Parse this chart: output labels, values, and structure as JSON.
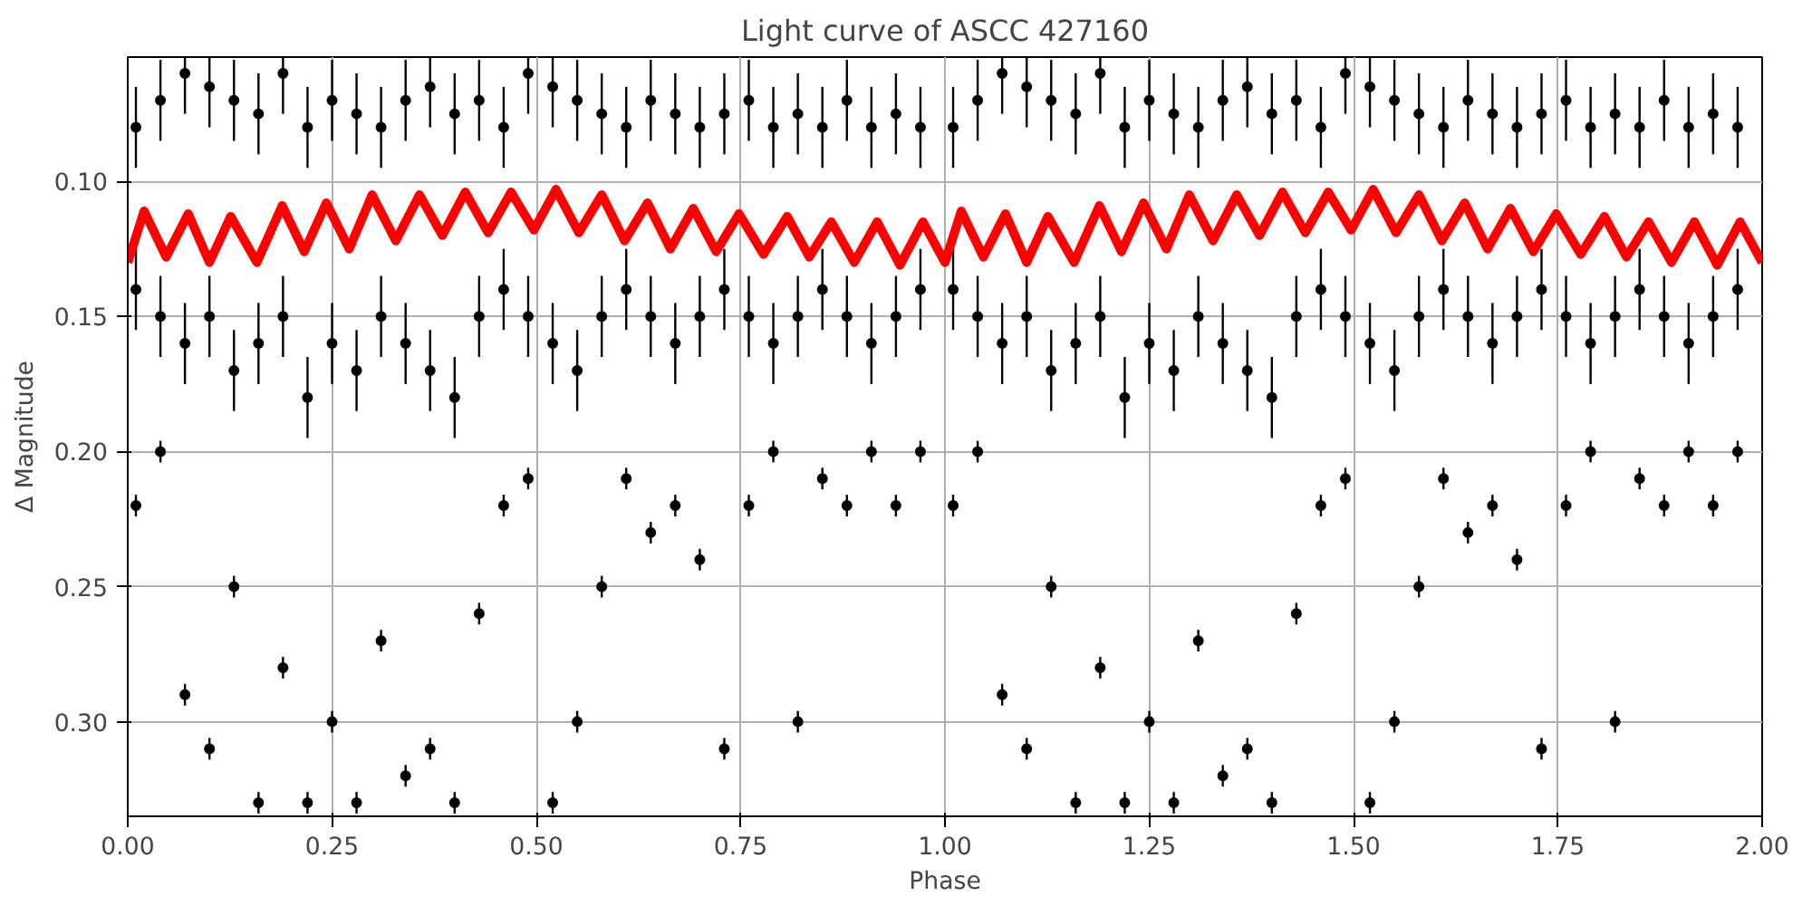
{
  "chart_data": {
    "type": "scatter",
    "title": "Light curve of ASCC 427160",
    "xlabel": "Phase",
    "ylabel": "Δ Magnitude",
    "xlim": [
      0,
      2
    ],
    "ylim": [
      0.335,
      0.054
    ],
    "xticks": [
      {
        "value": 0,
        "label": "0.00"
      },
      {
        "value": 0.25,
        "label": "0.25"
      },
      {
        "value": 0.5,
        "label": "0.50"
      },
      {
        "value": 0.75,
        "label": "0.75"
      },
      {
        "value": 1,
        "label": "1.00"
      },
      {
        "value": 1.25,
        "label": "1.25"
      },
      {
        "value": 1.5,
        "label": "1.50"
      },
      {
        "value": 1.75,
        "label": "1.75"
      },
      {
        "value": 2,
        "label": "2.00"
      }
    ],
    "yticks": [
      {
        "value": 0.1,
        "label": "0.10"
      },
      {
        "value": 0.15,
        "label": "0.15"
      },
      {
        "value": 0.2,
        "label": "0.20"
      },
      {
        "value": 0.25,
        "label": "0.25"
      },
      {
        "value": 0.3,
        "label": "0.30"
      }
    ],
    "grid": true,
    "series": [
      {
        "color": "#000000",
        "marker": "circle",
        "x": [
          0.01,
          0.04,
          0.07,
          0.1,
          0.13,
          0.16,
          0.19,
          0.22,
          0.25,
          0.28,
          0.31,
          0.34,
          0.37,
          0.4,
          0.43,
          0.46,
          0.49,
          0.52,
          0.55,
          0.58,
          0.61,
          0.64,
          0.67,
          0.7,
          0.73,
          0.76,
          0.79,
          0.82,
          0.85,
          0.88,
          0.91,
          0.94,
          0.97,
          0.01,
          0.04,
          0.07,
          0.1,
          0.13,
          0.16,
          0.19,
          0.22,
          0.25,
          0.28,
          0.31,
          0.34,
          0.37,
          0.4,
          0.43,
          0.46,
          0.49,
          0.52,
          0.55,
          0.58,
          0.61,
          0.64,
          0.67,
          0.7,
          0.73,
          0.76,
          0.79,
          0.82,
          0.85,
          0.88,
          0.91,
          0.94,
          0.97,
          0.01,
          0.04,
          0.07,
          0.1,
          0.13,
          0.16,
          0.19,
          0.22,
          0.25,
          0.28,
          0.31,
          0.34,
          0.37,
          0.4,
          0.43,
          0.46,
          0.49,
          0.52,
          0.55,
          0.58,
          0.61,
          0.64,
          0.67,
          0.7,
          0.73,
          0.76,
          0.79,
          0.82,
          0.85,
          0.88,
          0.91,
          0.94,
          0.97,
          1.01,
          1.04,
          1.07,
          1.1,
          1.13,
          1.16,
          1.19,
          1.22,
          1.25,
          1.28,
          1.31,
          1.34,
          1.37,
          1.4,
          1.43,
          1.46,
          1.49,
          1.52,
          1.55,
          1.58,
          1.61,
          1.64,
          1.67,
          1.7,
          1.73,
          1.76,
          1.79,
          1.82,
          1.85,
          1.88,
          1.91,
          1.94,
          1.97,
          1.01,
          1.04,
          1.07,
          1.1,
          1.13,
          1.16,
          1.19,
          1.22,
          1.25,
          1.28,
          1.31,
          1.34,
          1.37,
          1.4,
          1.43,
          1.46,
          1.49,
          1.52,
          1.55,
          1.58,
          1.61,
          1.64,
          1.67,
          1.7,
          1.73,
          1.76,
          1.79,
          1.82,
          1.85,
          1.88,
          1.91,
          1.94,
          1.97,
          1.01,
          1.04,
          1.07,
          1.1,
          1.13,
          1.16,
          1.19,
          1.22,
          1.25,
          1.28,
          1.31,
          1.34,
          1.37,
          1.4,
          1.43,
          1.46,
          1.49,
          1.52,
          1.55,
          1.58,
          1.61,
          1.64,
          1.67,
          1.7,
          1.73,
          1.76,
          1.79,
          1.82,
          1.85,
          1.88,
          1.91,
          1.94,
          1.97
        ],
        "values": [
          0.08,
          0.07,
          0.06,
          0.065,
          0.07,
          0.075,
          0.06,
          0.08,
          0.07,
          0.075,
          0.08,
          0.07,
          0.065,
          0.075,
          0.07,
          0.08,
          0.06,
          0.065,
          0.07,
          0.075,
          0.08,
          0.07,
          0.075,
          0.08,
          0.075,
          0.07,
          0.08,
          0.075,
          0.08,
          0.07,
          0.08,
          0.075,
          0.08,
          0.14,
          0.15,
          0.16,
          0.15,
          0.17,
          0.16,
          0.15,
          0.18,
          0.16,
          0.17,
          0.15,
          0.16,
          0.17,
          0.18,
          0.15,
          0.14,
          0.15,
          0.16,
          0.17,
          0.15,
          0.14,
          0.15,
          0.16,
          0.15,
          0.14,
          0.15,
          0.16,
          0.15,
          0.14,
          0.15,
          0.16,
          0.15,
          0.14,
          0.22,
          0.2,
          0.29,
          0.31,
          0.25,
          0.33,
          0.28,
          0.33,
          0.3,
          0.33,
          0.27,
          0.32,
          0.31,
          0.33,
          0.26,
          0.22,
          0.21,
          0.33,
          0.3,
          0.25,
          0.21,
          0.23,
          0.22,
          0.24,
          0.31,
          0.22,
          0.2,
          0.3,
          0.21,
          0.22,
          0.2,
          0.22,
          0.2,
          0.08,
          0.07,
          0.06,
          0.065,
          0.07,
          0.075,
          0.06,
          0.08,
          0.07,
          0.075,
          0.08,
          0.07,
          0.065,
          0.075,
          0.07,
          0.08,
          0.06,
          0.065,
          0.07,
          0.075,
          0.08,
          0.07,
          0.075,
          0.08,
          0.075,
          0.07,
          0.08,
          0.075,
          0.08,
          0.07,
          0.08,
          0.075,
          0.08,
          0.14,
          0.15,
          0.16,
          0.15,
          0.17,
          0.16,
          0.15,
          0.18,
          0.16,
          0.17,
          0.15,
          0.16,
          0.17,
          0.18,
          0.15,
          0.14,
          0.15,
          0.16,
          0.17,
          0.15,
          0.14,
          0.15,
          0.16,
          0.15,
          0.14,
          0.15,
          0.16,
          0.15,
          0.14,
          0.15,
          0.16,
          0.15,
          0.14,
          0.22,
          0.2,
          0.29,
          0.31,
          0.25,
          0.33,
          0.28,
          0.33,
          0.3,
          0.33,
          0.27,
          0.32,
          0.31,
          0.33,
          0.26,
          0.22,
          0.21,
          0.33,
          0.3,
          0.25,
          0.21,
          0.23,
          0.22,
          0.24,
          0.31,
          0.22,
          0.2,
          0.3,
          0.21,
          0.22,
          0.2,
          0.22,
          0.2
        ],
        "errors": [
          0.015,
          0.015,
          0.015,
          0.015,
          0.015,
          0.015,
          0.015,
          0.015,
          0.015,
          0.015,
          0.015,
          0.015,
          0.015,
          0.015,
          0.015,
          0.015,
          0.015,
          0.015,
          0.015,
          0.015,
          0.015,
          0.015,
          0.015,
          0.015,
          0.015,
          0.015,
          0.015,
          0.015,
          0.015,
          0.015,
          0.015,
          0.015,
          0.015,
          0.015,
          0.015,
          0.015,
          0.015,
          0.015,
          0.015,
          0.015,
          0.015,
          0.015,
          0.015,
          0.015,
          0.015,
          0.015,
          0.015,
          0.015,
          0.015,
          0.015,
          0.015,
          0.015,
          0.015,
          0.015,
          0.015,
          0.015,
          0.015,
          0.015,
          0.015,
          0.015,
          0.015,
          0.015,
          0.015,
          0.015,
          0.015,
          0.015,
          0.004,
          0.004,
          0.004,
          0.004,
          0.004,
          0.004,
          0.004,
          0.004,
          0.004,
          0.004,
          0.004,
          0.004,
          0.004,
          0.004,
          0.004,
          0.004,
          0.004,
          0.004,
          0.004,
          0.004,
          0.004,
          0.004,
          0.004,
          0.004,
          0.004,
          0.004,
          0.004,
          0.004,
          0.004,
          0.004,
          0.004,
          0.004,
          0.004,
          0.015,
          0.015,
          0.015,
          0.015,
          0.015,
          0.015,
          0.015,
          0.015,
          0.015,
          0.015,
          0.015,
          0.015,
          0.015,
          0.015,
          0.015,
          0.015,
          0.015,
          0.015,
          0.015,
          0.015,
          0.015,
          0.015,
          0.015,
          0.015,
          0.015,
          0.015,
          0.015,
          0.015,
          0.015,
          0.015,
          0.015,
          0.015,
          0.015,
          0.015,
          0.015,
          0.015,
          0.015,
          0.015,
          0.015,
          0.015,
          0.015,
          0.015,
          0.015,
          0.015,
          0.015,
          0.015,
          0.015,
          0.015,
          0.015,
          0.015,
          0.015,
          0.015,
          0.015,
          0.015,
          0.015,
          0.015,
          0.015,
          0.015,
          0.015,
          0.015,
          0.015,
          0.015,
          0.015,
          0.015,
          0.015,
          0.015,
          0.004,
          0.004,
          0.004,
          0.004,
          0.004,
          0.004,
          0.004,
          0.004,
          0.004,
          0.004,
          0.004,
          0.004,
          0.004,
          0.004,
          0.004,
          0.004,
          0.004,
          0.004,
          0.004,
          0.004,
          0.004,
          0.004,
          0.004,
          0.004,
          0.004,
          0.004,
          0.004,
          0.004,
          0.004,
          0.004,
          0.004,
          0.004,
          0.004
        ]
      },
      {
        "type": "line",
        "color": "#ff0000",
        "x": [
          0,
          0.02,
          0.047,
          0.074,
          0.1,
          0.126,
          0.158,
          0.189,
          0.216,
          0.243,
          0.271,
          0.299,
          0.328,
          0.357,
          0.385,
          0.413,
          0.441,
          0.469,
          0.497,
          0.524,
          0.552,
          0.58,
          0.608,
          0.636,
          0.664,
          0.692,
          0.72,
          0.748,
          0.778,
          0.807,
          0.834,
          0.861,
          0.889,
          0.917,
          0.945,
          0.973,
          1,
          1.02,
          1.047,
          1.074,
          1.1,
          1.126,
          1.158,
          1.189,
          1.216,
          1.243,
          1.271,
          1.299,
          1.328,
          1.357,
          1.385,
          1.413,
          1.441,
          1.469,
          1.497,
          1.524,
          1.552,
          1.58,
          1.608,
          1.636,
          1.664,
          1.692,
          1.72,
          1.748,
          1.778,
          1.807,
          1.834,
          1.861,
          1.889,
          1.917,
          1.945,
          1.973,
          2
        ],
        "values": [
          0.13,
          0.111,
          0.128,
          0.112,
          0.13,
          0.113,
          0.13,
          0.109,
          0.126,
          0.108,
          0.125,
          0.105,
          0.122,
          0.105,
          0.12,
          0.104,
          0.119,
          0.104,
          0.118,
          0.103,
          0.119,
          0.105,
          0.122,
          0.108,
          0.125,
          0.11,
          0.126,
          0.112,
          0.127,
          0.113,
          0.128,
          0.115,
          0.13,
          0.115,
          0.131,
          0.115,
          0.13,
          0.111,
          0.128,
          0.112,
          0.13,
          0.113,
          0.13,
          0.109,
          0.126,
          0.108,
          0.125,
          0.105,
          0.122,
          0.105,
          0.12,
          0.104,
          0.119,
          0.104,
          0.118,
          0.103,
          0.119,
          0.105,
          0.122,
          0.108,
          0.125,
          0.11,
          0.126,
          0.112,
          0.127,
          0.113,
          0.128,
          0.115,
          0.13,
          0.115,
          0.131,
          0.115,
          0.13
        ]
      }
    ]
  }
}
